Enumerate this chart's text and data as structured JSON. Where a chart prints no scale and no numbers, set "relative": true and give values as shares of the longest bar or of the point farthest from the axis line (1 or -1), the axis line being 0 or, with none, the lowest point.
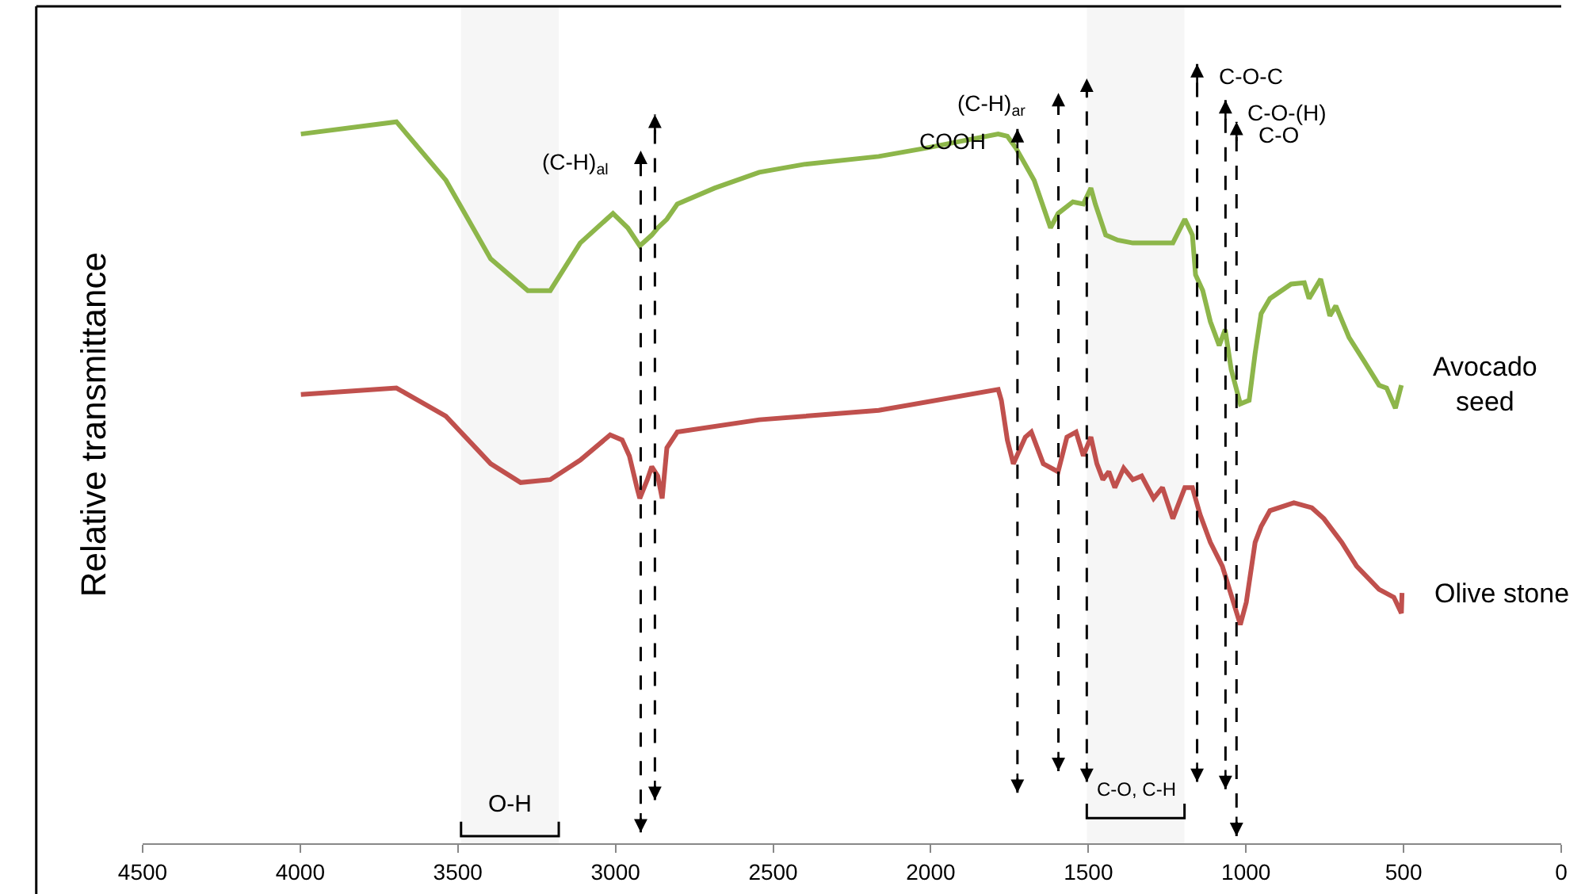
{
  "chart_data": {
    "type": "line",
    "relative": true,
    "ylabel": "Relative transmittance",
    "xlim": [
      4500,
      0
    ],
    "xticks": [
      4500,
      4000,
      3500,
      3000,
      2500,
      2000,
      1500,
      1000,
      500,
      0
    ],
    "grid": false,
    "legend": false,
    "marker": "none",
    "line_style": "solid",
    "series": [
      {
        "name": "Avocado seed",
        "color": "#8db64a",
        "x": [
          3998,
          3695,
          3538,
          3396,
          3278,
          3207,
          3112,
          3008,
          2961,
          2923,
          2885,
          2866,
          2837,
          2804,
          2686,
          2544,
          2402,
          2165,
          2023,
          1786,
          1757,
          1729,
          1672,
          1620,
          1596,
          1549,
          1516,
          1492,
          1478,
          1445,
          1407,
          1359,
          1232,
          1194,
          1170,
          1160,
          1137,
          1113,
          1085,
          1066,
          1047,
          1018,
          990,
          971,
          952,
          924,
          857,
          815,
          800,
          763,
          734,
          715,
          673,
          625,
          578,
          554,
          526,
          507
        ],
        "values": [
          0.983,
          1,
          0.919,
          0.81,
          0.766,
          0.766,
          0.832,
          0.873,
          0.853,
          0.828,
          0.843,
          0.853,
          0.865,
          0.886,
          0.908,
          0.93,
          0.941,
          0.952,
          0.963,
          0.983,
          0.98,
          0.963,
          0.919,
          0.853,
          0.873,
          0.889,
          0.886,
          0.908,
          0.886,
          0.843,
          0.836,
          0.832,
          0.832,
          0.865,
          0.843,
          0.788,
          0.766,
          0.723,
          0.69,
          0.712,
          0.657,
          0.609,
          0.614,
          0.679,
          0.734,
          0.755,
          0.775,
          0.777,
          0.755,
          0.782,
          0.731,
          0.745,
          0.701,
          0.668,
          0.635,
          0.631,
          0.603,
          0.635
        ]
      },
      {
        "name": "Olive stone",
        "color": "#c0504d",
        "x": [
          3998,
          3695,
          3538,
          3396,
          3301,
          3207,
          3112,
          3017,
          2979,
          2956,
          2932,
          2923,
          2899,
          2885,
          2866,
          2852,
          2837,
          2804,
          2544,
          2165,
          1786,
          1776,
          1757,
          1738,
          1700,
          1681,
          1643,
          1596,
          1568,
          1539,
          1516,
          1492,
          1473,
          1454,
          1435,
          1416,
          1388,
          1359,
          1331,
          1293,
          1265,
          1232,
          1194,
          1170,
          1146,
          1113,
          1075,
          1037,
          1018,
          999,
          971,
          952,
          924,
          848,
          791,
          753,
          696,
          649,
          578,
          531,
          507,
          505
        ],
        "values": [
          0.622,
          0.631,
          0.592,
          0.526,
          0.5,
          0.504,
          0.531,
          0.566,
          0.559,
          0.537,
          0.493,
          0.478,
          0.504,
          0.522,
          0.509,
          0.478,
          0.548,
          0.57,
          0.587,
          0.6,
          0.629,
          0.614,
          0.559,
          0.526,
          0.563,
          0.57,
          0.526,
          0.515,
          0.563,
          0.57,
          0.537,
          0.563,
          0.526,
          0.504,
          0.515,
          0.493,
          0.52,
          0.504,
          0.509,
          0.478,
          0.493,
          0.45,
          0.493,
          0.493,
          0.456,
          0.417,
          0.384,
          0.33,
          0.303,
          0.334,
          0.417,
          0.439,
          0.461,
          0.472,
          0.465,
          0.45,
          0.417,
          0.384,
          0.352,
          0.341,
          0.319,
          0.347
        ]
      }
    ],
    "ref_lines": [
      {
        "axis": "x",
        "value": 2920,
        "label": "(C-H)$_{al}$",
        "color": "#000000",
        "line_style": "dashed"
      },
      {
        "axis": "x",
        "value": 2875,
        "color": "#000000",
        "line_style": "dashed"
      },
      {
        "axis": "x",
        "value": 1725,
        "label": "COOH",
        "color": "#000000",
        "line_style": "dashed"
      },
      {
        "axis": "x",
        "value": 1595,
        "label": "(C-H)$_{ar}$",
        "color": "#000000",
        "line_style": "dashed"
      },
      {
        "axis": "x",
        "value": 1505,
        "color": "#000000",
        "line_style": "dashed"
      },
      {
        "axis": "x",
        "value": 1155,
        "label": "C-O-C",
        "color": "#000000",
        "line_style": "dashed"
      },
      {
        "axis": "x",
        "value": 1065,
        "label": "C-O-(H)",
        "color": "#000000",
        "line_style": "dashed"
      },
      {
        "axis": "x",
        "value": 1030,
        "label": "C-O",
        "color": "#000000",
        "line_style": "dashed"
      }
    ],
    "bands": [
      {
        "axis": "x",
        "from": 3490,
        "to": 3180,
        "label": "O-H",
        "color": "#000000"
      },
      {
        "axis": "x",
        "from": 1505,
        "to": 1195,
        "label": "C-O, C-H",
        "color": "#000000"
      }
    ]
  }
}
